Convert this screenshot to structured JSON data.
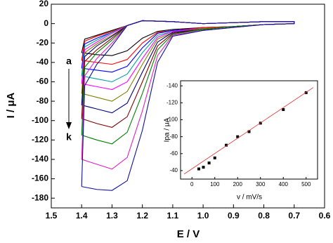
{
  "chart_data": [
    {
      "type": "line",
      "xlabel": "E / V",
      "ylabel": "I / μA",
      "annotations": [
        "a",
        "k"
      ],
      "xlim": [
        1.5,
        0.6
      ],
      "ylim": [
        -190,
        20
      ],
      "xticks": [
        1.5,
        1.4,
        1.3,
        1.2,
        1.1,
        {
          "value": 1,
          "label": "1.0"
        },
        0.9,
        0.8,
        0.7,
        0.6
      ],
      "yticks": [
        20,
        0,
        -20,
        -40,
        -60,
        -80,
        -100,
        -120,
        -140,
        -160,
        -180
      ],
      "x": [
        1.4,
        1.35,
        1.3,
        1.25,
        1.2,
        1.15,
        1.1,
        1.0,
        0.9,
        0.8,
        0.7,
        0.7,
        0.8,
        0.9,
        1.0,
        1.1,
        1.2,
        1.25,
        1.3,
        1.35,
        1.39,
        1.4
      ],
      "series": [
        {
          "color": "#000000",
          "values": [
            -30,
            -32,
            -33,
            -28,
            -15,
            -8,
            -6,
            -4,
            -3,
            -1,
            0,
            2,
            2,
            1,
            0,
            2,
            3,
            -2,
            -7,
            -12,
            -16,
            -30
          ]
        },
        {
          "color": "#ff0000",
          "values": [
            -38,
            -40,
            -42,
            -37,
            -20,
            -9,
            -7,
            -4,
            -3,
            -1,
            0,
            2,
            2,
            1,
            0,
            2,
            3,
            -2,
            -8,
            -13,
            -18,
            -38
          ]
        },
        {
          "color": "#0000ff",
          "values": [
            -46,
            -48,
            -50,
            -44,
            -25,
            -10,
            -7,
            -5,
            -3,
            -1,
            0,
            2,
            2,
            1,
            0,
            2,
            3,
            -2,
            -9,
            -15,
            -21,
            -46
          ]
        },
        {
          "color": "#00a0a0",
          "values": [
            -54,
            -57,
            -60,
            -52,
            -30,
            -12,
            -8,
            -5,
            -3,
            -1,
            0,
            2,
            2,
            1,
            0,
            2,
            3,
            -2,
            -9,
            -17,
            -24,
            -54
          ]
        },
        {
          "color": "#ff00ff",
          "values": [
            -62,
            -65,
            -68,
            -60,
            -36,
            -14,
            -8,
            -5,
            -3,
            -1,
            0,
            2,
            2,
            1,
            0,
            2,
            3,
            -2,
            -10,
            -19,
            -27,
            -62
          ]
        },
        {
          "color": "#808000",
          "values": [
            -72,
            -76,
            -80,
            -70,
            -42,
            -16,
            -9,
            -5,
            -3,
            -1,
            0,
            2,
            2,
            1,
            0,
            2,
            3,
            -2,
            -12,
            -21,
            -30,
            -72
          ]
        },
        {
          "color": "#000080",
          "values": [
            -84,
            -88,
            -92,
            -82,
            -50,
            -19,
            -9,
            -6,
            -3,
            -1,
            0,
            2,
            2,
            1,
            0,
            2,
            3,
            -2,
            -13,
            -23,
            -34,
            -84
          ]
        },
        {
          "color": "#800000",
          "values": [
            -98,
            -103,
            -107,
            -96,
            -60,
            -23,
            -10,
            -6,
            -3,
            -1,
            0,
            2,
            2,
            1,
            0,
            2,
            3,
            -2,
            -15,
            -27,
            -39,
            -98
          ]
        },
        {
          "color": "#008000",
          "values": [
            -115,
            -120,
            -124,
            -112,
            -72,
            -27,
            -11,
            -6,
            -3,
            -1,
            0,
            2,
            2,
            1,
            0,
            2,
            3,
            -2,
            -17,
            -30,
            -45,
            -115
          ]
        },
        {
          "color": "#e020c0",
          "values": [
            -140,
            -145,
            -150,
            -138,
            -90,
            -33,
            -12,
            -7,
            -4,
            -1,
            0,
            2,
            2,
            1,
            0,
            2,
            3,
            -2,
            -20,
            -36,
            -54,
            -140
          ]
        },
        {
          "color": "#1010a0",
          "values": [
            -168,
            -171,
            -172,
            -162,
            -110,
            -40,
            -13,
            -7,
            -4,
            -1,
            0,
            2,
            2,
            1,
            0,
            2,
            3,
            -2,
            -23,
            -42,
            -64,
            -168
          ]
        }
      ]
    },
    {
      "type": "scatter",
      "xlabel": "v / mV/s",
      "ylabel": "Ipa / μA",
      "xlim": [
        -50,
        550
      ],
      "ylim": [
        -30,
        -146
      ],
      "xticks": [
        0,
        100,
        200,
        300,
        400,
        500
      ],
      "yticks": [
        -140,
        -120,
        -100,
        -80,
        -60,
        -40
      ],
      "series": [
        {
          "type": "scatter",
          "color": "#000000",
          "x": [
            30,
            50,
            75,
            100,
            150,
            200,
            250,
            300,
            400,
            500
          ],
          "values": [
            -42,
            -44,
            -49,
            -55,
            -70,
            -80,
            -86,
            -96,
            -112,
            -132
          ]
        },
        {
          "type": "line",
          "color": "#e03030",
          "x": [
            -34,
            531
          ],
          "values": [
            -36,
            -138
          ]
        }
      ]
    }
  ]
}
